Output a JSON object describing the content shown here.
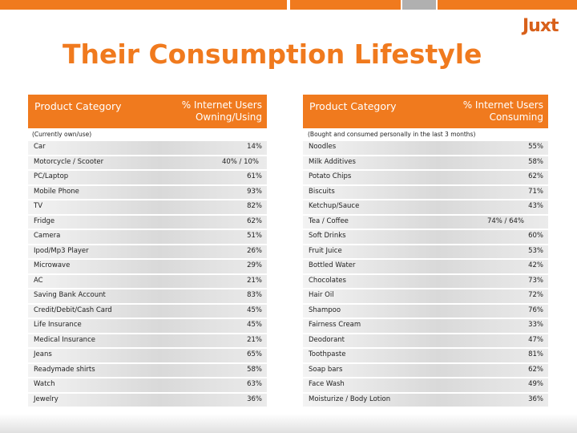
{
  "logo": "Juxt",
  "title": "Their Consumption Lifestyle",
  "left": {
    "header_category": "Product Category",
    "header_pct_line1": "% Internet Users",
    "header_pct_line2": "Owning/Using",
    "note": "(Currently own/use)",
    "rows": [
      {
        "label": "Car",
        "value": "14%"
      },
      {
        "label": "Motorcycle / Scooter",
        "value": "40% / 10%"
      },
      {
        "label": "PC/Laptop",
        "value": "61%"
      },
      {
        "label": "Mobile Phone",
        "value": "93%"
      },
      {
        "label": "TV",
        "value": "82%"
      },
      {
        "label": "Fridge",
        "value": "62%"
      },
      {
        "label": "Camera",
        "value": "51%"
      },
      {
        "label": "Ipod/Mp3 Player",
        "value": "26%"
      },
      {
        "label": "Microwave",
        "value": "29%"
      },
      {
        "label": "AC",
        "value": "21%"
      },
      {
        "label": "Saving Bank Account",
        "value": "83%"
      },
      {
        "label": "Credit/Debit/Cash Card",
        "value": "45%"
      },
      {
        "label": "Life Insurance",
        "value": "45%"
      },
      {
        "label": "Medical Insurance",
        "value": "21%"
      },
      {
        "label": "Jeans",
        "value": "65%"
      },
      {
        "label": "Readymade shirts",
        "value": "58%"
      },
      {
        "label": "Watch",
        "value": "63%"
      },
      {
        "label": "Jewelry",
        "value": "36%"
      }
    ]
  },
  "right": {
    "header_category": "Product Category",
    "header_pct_line1": "% Internet Users",
    "header_pct_line2": "Consuming",
    "note": "(Bought and consumed personally in the last 3 months)",
    "rows": [
      {
        "label": "Noodles",
        "value": "55%"
      },
      {
        "label": "Milk Additives",
        "value": "58%"
      },
      {
        "label": "Potato Chips",
        "value": "62%"
      },
      {
        "label": "Biscuits",
        "value": "71%"
      },
      {
        "label": "Ketchup/Sauce",
        "value": "43%"
      },
      {
        "label": "Tea / Coffee",
        "value": "74% / 64%"
      },
      {
        "label": "Soft Drinks",
        "value": "60%"
      },
      {
        "label": "Fruit Juice",
        "value": "53%"
      },
      {
        "label": "Bottled Water",
        "value": "42%"
      },
      {
        "label": "Chocolates",
        "value": "73%"
      },
      {
        "label": "Hair Oil",
        "value": "72%"
      },
      {
        "label": "Shampoo",
        "value": "76%"
      },
      {
        "label": "Fairness Cream",
        "value": "33%"
      },
      {
        "label": "Deodorant",
        "value": "47%"
      },
      {
        "label": "Toothpaste",
        "value": "81%"
      },
      {
        "label": "Soap bars",
        "value": "62%"
      },
      {
        "label": "Face Wash",
        "value": "49%"
      },
      {
        "label": "Moisturize / Body Lotion",
        "value": "36%"
      }
    ]
  }
}
